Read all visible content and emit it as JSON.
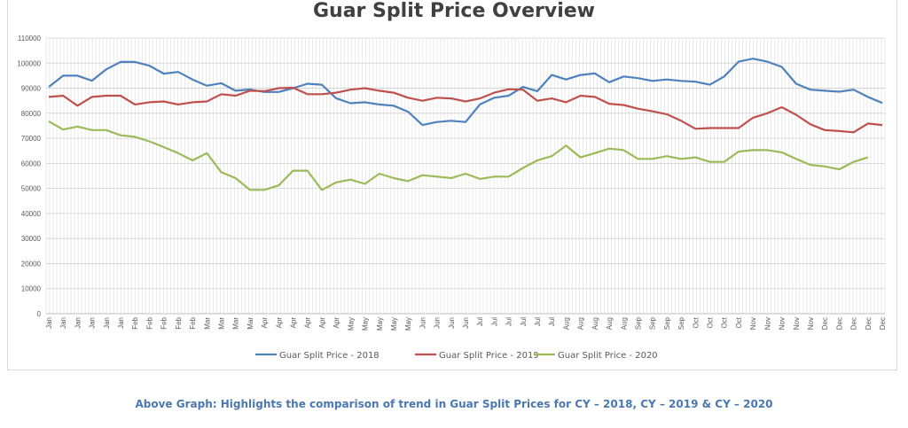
{
  "chart_data": {
    "type": "line",
    "title": "Guar Split Price Overview",
    "xlabel": "",
    "ylabel": "",
    "ylim": [
      0,
      110000
    ],
    "yticks": [
      0,
      10000,
      20000,
      30000,
      40000,
      50000,
      60000,
      70000,
      80000,
      90000,
      100000,
      110000
    ],
    "grid": true,
    "legend_position": "bottom",
    "categories": [
      "Jan",
      "Jan",
      "Jan",
      "Jan",
      "Jan",
      "Jan",
      "Feb",
      "Feb",
      "Feb",
      "Feb",
      "Feb",
      "Mar",
      "Mar",
      "Mar",
      "Mar",
      "Apr",
      "Apr",
      "Apr",
      "Apr",
      "Apr",
      "Apr",
      "May",
      "May",
      "May",
      "May",
      "May",
      "Jun",
      "Jun",
      "Jun",
      "Jun",
      "Jul",
      "Jul",
      "Jul",
      "Jul",
      "Jul",
      "Jul",
      "Aug",
      "Aug",
      "Aug",
      "Aug",
      "Aug",
      "Sep",
      "Sep",
      "Sep",
      "Sep",
      "Oct",
      "Oct",
      "Oct",
      "Oct",
      "Nov",
      "Nov",
      "Nov",
      "Nov",
      "Nov",
      "Dec",
      "Dec",
      "Dec",
      "Dec",
      "Dec"
    ],
    "series": [
      {
        "name": "Guar Split Price - 2018",
        "color": "#4f81bd",
        "values": [
          90500,
          95000,
          95000,
          93000,
          97500,
          100500,
          100500,
          99000,
          95800,
          96500,
          93500,
          91000,
          92000,
          89000,
          89500,
          88500,
          88500,
          90000,
          91800,
          91400,
          86000,
          84000,
          84400,
          83500,
          83000,
          80600,
          75300,
          76500,
          77000,
          76500,
          83500,
          86200,
          87000,
          90500,
          88800,
          95300,
          93500,
          95300,
          95900,
          92400,
          94700,
          94000,
          92900,
          93500,
          92900,
          92600,
          91400,
          94700,
          100600,
          101800,
          100600,
          98500,
          91800,
          89400,
          89000,
          88600,
          89400,
          86500,
          84100
        ]
      },
      {
        "name": "Guar Split Price - 2019",
        "color": "#c0504d",
        "values": [
          86500,
          87000,
          83000,
          86500,
          87000,
          87000,
          83500,
          84400,
          84700,
          83500,
          84400,
          84700,
          87600,
          87000,
          89000,
          88800,
          90000,
          90200,
          87600,
          87600,
          88200,
          89400,
          90000,
          89000,
          88200,
          86200,
          85000,
          86200,
          85900,
          84700,
          85900,
          88200,
          89600,
          89400,
          85000,
          85900,
          84400,
          87000,
          86500,
          83800,
          83300,
          81800,
          80800,
          79600,
          77000,
          73800,
          74100,
          74100,
          74100,
          78200,
          80000,
          82400,
          79400,
          75600,
          73300,
          72900,
          72400,
          75900,
          75300
        ]
      },
      {
        "name": "Guar Split Price - 2020",
        "color": "#9bbb59",
        "values": [
          76800,
          73500,
          74700,
          73300,
          73300,
          71200,
          70600,
          68800,
          66500,
          64100,
          61200,
          64100,
          56500,
          54100,
          49400,
          49400,
          51200,
          57100,
          57100,
          49400,
          52400,
          53500,
          51800,
          55900,
          54100,
          52900,
          55300,
          54700,
          54100,
          55900,
          53800,
          54700,
          54700,
          58200,
          61200,
          62900,
          67100,
          62400,
          64100,
          65900,
          65300,
          61800,
          61800,
          62900,
          61800,
          62400,
          60600,
          60600,
          64700,
          65300,
          65300,
          64400,
          61800,
          59400,
          58800,
          57600,
          60600,
          62400,
          null
        ]
      }
    ]
  },
  "caption": "Above Graph: Highlights the comparison of trend in Guar Split Prices for CY – 2018, CY – 2019 & CY – 2020"
}
